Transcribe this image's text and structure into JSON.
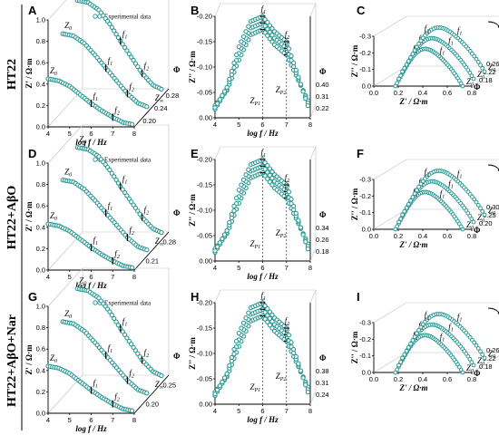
{
  "colors": {
    "marker": "#2e9a96",
    "marker_fill": "#ffffff",
    "guide": "#1f4fbf",
    "axis": "#000000",
    "grid": "#bfbfbf"
  },
  "row_labels": [
    "HT22",
    "HT22+AβO",
    "HT22+AβO+Nar"
  ],
  "legend_label": "Experimental data",
  "chart_data": [
    {
      "panel": "A",
      "type": "scatter",
      "xlabel": "log f / Hz",
      "ylabel": "Z' / Ω·m",
      "zlabel": "Φ",
      "x_ticks": [
        "4",
        "5",
        "6",
        "7",
        "8"
      ],
      "y_ticks": [
        "0.0",
        "0.2",
        "0.4",
        "0.6",
        "0.8",
        "1.0"
      ],
      "z_ticks": [
        "0.20",
        "0.24",
        "0.28"
      ],
      "annotations": [
        "Z0",
        "Z∞",
        "f1",
        "f2"
      ],
      "legend": "Experimental data",
      "series": [
        {
          "phi": 0.2,
          "x": [
            4.0,
            4.5,
            5.0,
            5.5,
            6.0,
            6.5,
            7.0,
            7.5,
            8.0
          ],
          "z_real": [
            0.45,
            0.43,
            0.38,
            0.3,
            0.22,
            0.15,
            0.09,
            0.04,
            0.02
          ]
        },
        {
          "phi": 0.24,
          "x": [
            4.0,
            4.5,
            5.0,
            5.5,
            6.0,
            6.5,
            7.0,
            7.5,
            8.0
          ],
          "z_real": [
            0.72,
            0.7,
            0.63,
            0.52,
            0.4,
            0.28,
            0.16,
            0.07,
            0.03
          ]
        },
        {
          "phi": 0.28,
          "x": [
            4.0,
            4.5,
            5.0,
            5.5,
            6.0,
            6.5,
            7.0,
            7.5,
            8.0
          ],
          "z_real": [
            0.88,
            0.86,
            0.79,
            0.66,
            0.5,
            0.35,
            0.2,
            0.09,
            0.04
          ]
        }
      ]
    },
    {
      "panel": "B",
      "type": "scatter",
      "xlabel": "log f / Hz",
      "ylabel": "Z'' / Ω·m",
      "zlabel": "Φ",
      "x_ticks": [
        "4",
        "5",
        "6",
        "7",
        "8"
      ],
      "y_ticks": [
        "0.00",
        "-0.05",
        "-0.10",
        "-0.15",
        "-0.20"
      ],
      "z_ticks": [
        "0.22",
        "0.31",
        "0.40"
      ],
      "annotations": [
        "f1",
        "f2",
        "ZP1",
        "ZP2"
      ],
      "series": [
        {
          "phi": 0.22,
          "x": [
            4.0,
            4.5,
            5.0,
            5.5,
            6.0,
            6.5,
            7.0,
            7.5,
            8.0
          ],
          "z_imag": [
            -0.01,
            -0.04,
            -0.1,
            -0.15,
            -0.16,
            -0.13,
            -0.11,
            -0.06,
            -0.01
          ]
        },
        {
          "phi": 0.31,
          "x": [
            4.0,
            4.5,
            5.0,
            5.5,
            6.0,
            6.5,
            7.0,
            7.5,
            8.0
          ],
          "z_imag": [
            -0.01,
            -0.05,
            -0.12,
            -0.17,
            -0.18,
            -0.15,
            -0.13,
            -0.07,
            -0.01
          ]
        },
        {
          "phi": 0.4,
          "x": [
            4.0,
            4.5,
            5.0,
            5.5,
            6.0,
            6.5,
            7.0,
            7.5,
            8.0
          ],
          "z_imag": [
            -0.02,
            -0.06,
            -0.14,
            -0.19,
            -0.2,
            -0.17,
            -0.15,
            -0.08,
            -0.01
          ]
        }
      ]
    },
    {
      "panel": "C",
      "type": "scatter",
      "xlabel": "Z' / Ω·m",
      "ylabel": "Z'' / Ω·m",
      "zlabel": "Φ",
      "x_ticks": [
        "0.0",
        "0.2",
        "0.4",
        "0.6",
        "0.8"
      ],
      "y_ticks": [
        "0.0",
        "-0.1",
        "-0.2",
        "-0.3"
      ],
      "z_ticks": [
        "0.18",
        "0.22",
        "0.26"
      ],
      "annotations": [
        "f1",
        "f2",
        "Z0",
        "ω"
      ]
    },
    {
      "panel": "D",
      "type": "scatter",
      "xlabel": "log f / Hz",
      "ylabel": "Z' / Ω·m",
      "zlabel": "Φ",
      "x_ticks": [
        "4",
        "5",
        "6",
        "7",
        "8"
      ],
      "y_ticks": [
        "0.0",
        "0.2",
        "0.4",
        "0.6",
        "0.8",
        "1.0"
      ],
      "z_ticks": [
        "0.21",
        "0.28"
      ],
      "annotations": [
        "Z0",
        "Z∞",
        "f1",
        "f2"
      ],
      "legend": "Experimental data"
    },
    {
      "panel": "E",
      "type": "scatter",
      "xlabel": "log f / Hz",
      "ylabel": "Z'' / Ω·m",
      "zlabel": "Φ",
      "x_ticks": [
        "4",
        "5",
        "6",
        "7",
        "8"
      ],
      "y_ticks": [
        "0.00",
        "-0.05",
        "-0.10",
        "-0.15",
        "-0.20"
      ],
      "z_ticks": [
        "0.18",
        "0.26",
        "0.34"
      ],
      "annotations": [
        "f1",
        "f2",
        "ZP1",
        "ZP2"
      ]
    },
    {
      "panel": "F",
      "type": "scatter",
      "xlabel": "Z' / Ω·m",
      "ylabel": "Z'' / Ω·m",
      "zlabel": "Φ",
      "x_ticks": [
        "0.0",
        "0.2",
        "0.4",
        "0.6",
        "0.8"
      ],
      "y_ticks": [
        "0.0",
        "-0.1",
        "-0.2",
        "-0.3"
      ],
      "z_ticks": [
        "0.20",
        "0.25",
        "0.30"
      ],
      "annotations": [
        "f1",
        "f2",
        "Z0",
        "ω"
      ]
    },
    {
      "panel": "G",
      "type": "scatter",
      "xlabel": "log f / Hz",
      "ylabel": "Z' / Ω·m",
      "zlabel": "Φ",
      "x_ticks": [
        "4",
        "5",
        "6",
        "7",
        "8"
      ],
      "y_ticks": [
        "0.0",
        "0.2",
        "0.4",
        "0.6",
        "0.8",
        "1.0"
      ],
      "z_ticks": [
        "0.20",
        "0.25"
      ],
      "annotations": [
        "Z0",
        "Z∞",
        "f1",
        "f2"
      ],
      "legend": "Experimental data"
    },
    {
      "panel": "H",
      "type": "scatter",
      "xlabel": "log f / Hz",
      "ylabel": "Z'' / Ω·m",
      "zlabel": "Φ",
      "x_ticks": [
        "4",
        "5",
        "6",
        "7",
        "8"
      ],
      "y_ticks": [
        "0.00",
        "-0.05",
        "-0.10",
        "-0.15",
        "-0.20"
      ],
      "z_ticks": [
        "0.24",
        "0.31",
        "0.38"
      ],
      "annotations": [
        "f1",
        "f2",
        "ZP1",
        "ZP2"
      ]
    },
    {
      "panel": "I",
      "type": "scatter",
      "xlabel": "Z' / Ω·m",
      "ylabel": "Z'' / Ω·m",
      "zlabel": "Φ",
      "x_ticks": [
        "0.0",
        "0.2",
        "0.4",
        "0.6",
        "0.8"
      ],
      "y_ticks": [
        "0.0",
        "-0.1",
        "-0.2",
        "-0.3"
      ],
      "z_ticks": [
        "0.18",
        "0.22",
        "0.26"
      ],
      "annotations": [
        "f1",
        "f2",
        "Z0",
        "ω"
      ]
    }
  ]
}
